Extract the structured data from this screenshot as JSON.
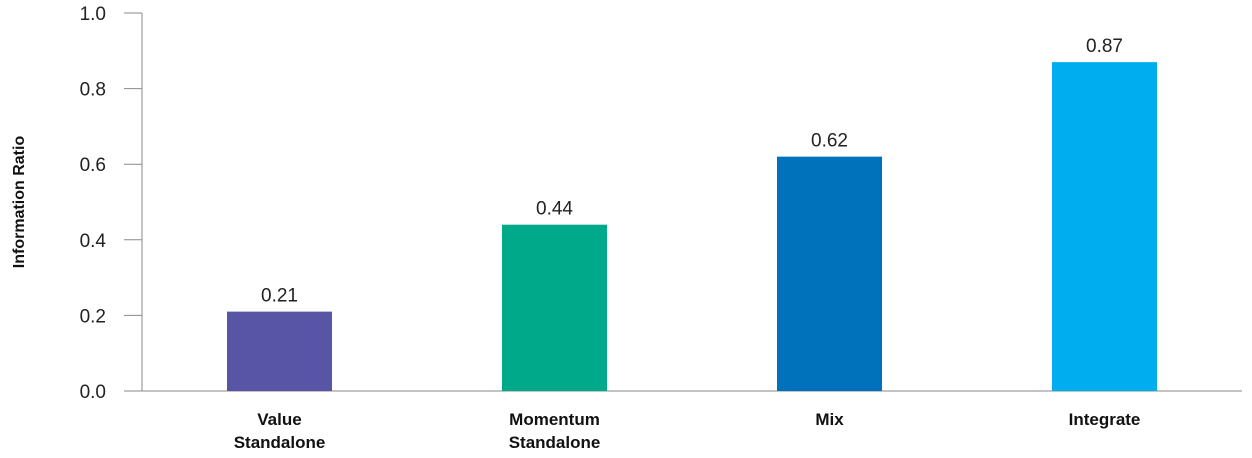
{
  "chart_data": {
    "type": "bar",
    "title": "",
    "xlabel": "",
    "ylabel": "Information Ratio",
    "ylim": [
      0,
      1.0
    ],
    "yticks": [
      "0.0",
      "0.2",
      "0.4",
      "0.6",
      "0.8",
      "1.0"
    ],
    "grid": false,
    "legend": "none",
    "categories": [
      [
        "Value",
        "Standalone"
      ],
      [
        "Momentum",
        "Standalone"
      ],
      [
        "Mix"
      ],
      [
        "Integrate"
      ]
    ],
    "values": [
      0.21,
      0.44,
      0.62,
      0.87
    ],
    "value_labels": [
      "0.21",
      "0.44",
      "0.62",
      "0.87"
    ],
    "colors": [
      "#5955a6",
      "#00a98a",
      "#0071bb",
      "#00adee"
    ]
  }
}
